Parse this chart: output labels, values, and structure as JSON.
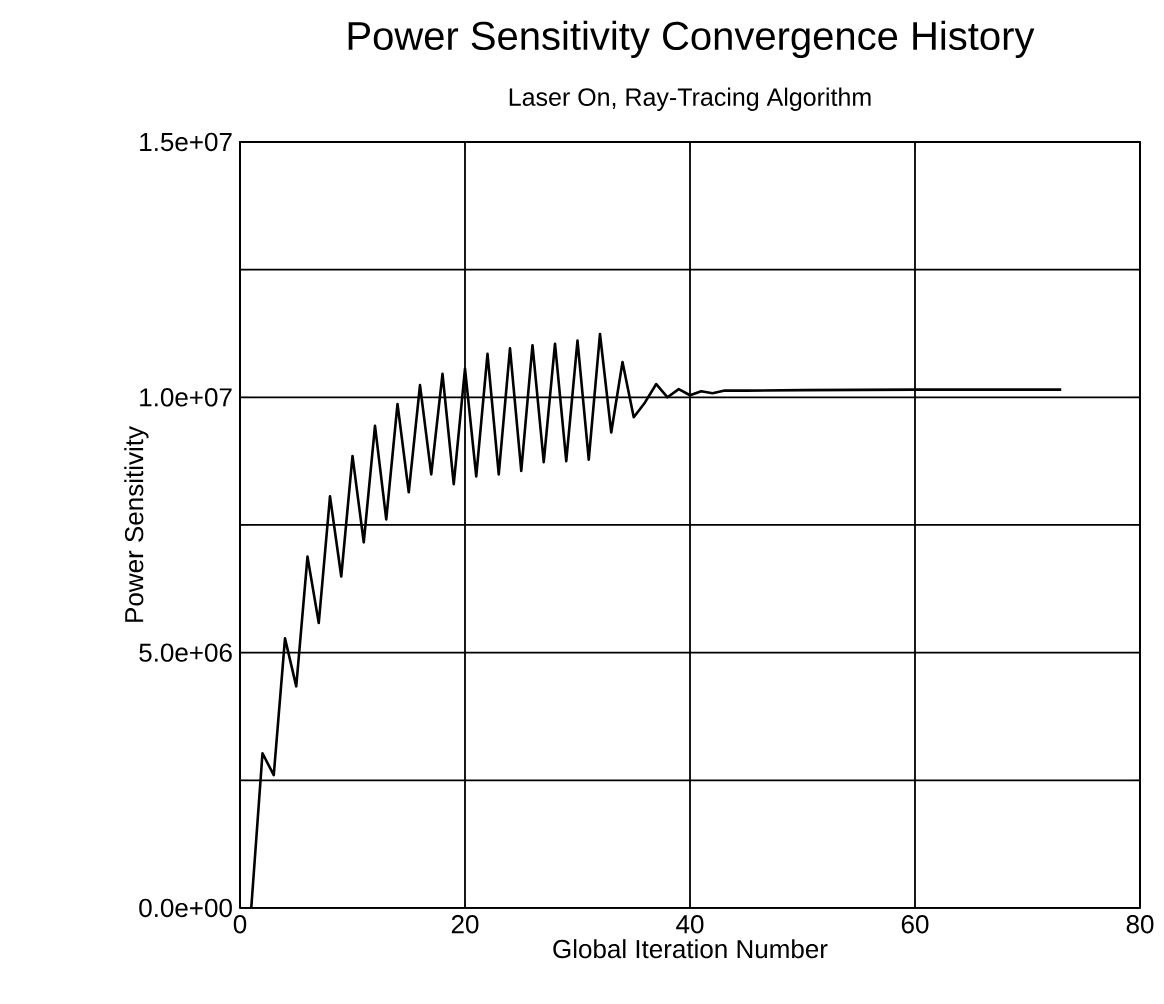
{
  "chart_data": {
    "type": "line",
    "title": "Power Sensitivity Convergence History",
    "subtitle": "Laser On, Ray-Tracing Algorithm",
    "xlabel": "Global Iteration Number",
    "ylabel": "Power Sensitivity",
    "x": [
      1,
      2,
      3,
      4,
      5,
      6,
      7,
      8,
      9,
      10,
      11,
      12,
      13,
      14,
      15,
      16,
      17,
      18,
      19,
      20,
      21,
      22,
      23,
      24,
      25,
      26,
      27,
      28,
      29,
      30,
      31,
      32,
      33,
      34,
      35,
      36,
      37,
      38,
      39,
      40,
      41,
      42,
      43,
      45,
      50,
      60,
      73
    ],
    "series": [
      {
        "color": "#000000",
        "values": [
          0,
          3030000,
          2600000,
          5280000,
          4340000,
          6880000,
          5580000,
          8060000,
          6490000,
          8850000,
          7160000,
          9440000,
          7610000,
          9870000,
          8140000,
          10240000,
          8490000,
          10460000,
          8300000,
          10560000,
          8450000,
          10850000,
          8490000,
          10960000,
          8560000,
          11020000,
          8730000,
          11050000,
          8750000,
          11110000,
          8780000,
          11240000,
          9310000,
          10690000,
          9610000,
          9900000,
          10260000,
          10000000,
          10160000,
          10040000,
          10120000,
          10080000,
          10130000,
          10130000,
          10140000,
          10150000,
          10150000
        ]
      }
    ],
    "xlim": [
      0,
      80
    ],
    "xticks": [
      0,
      20,
      40,
      60,
      80
    ],
    "ylim": [
      0,
      15000000
    ],
    "yticks": [
      {
        "value": 0,
        "label": "0.0e+00"
      },
      {
        "value": 2500000,
        "label": null
      },
      {
        "value": 5000000,
        "label": "5.0e+06"
      },
      {
        "value": 7500000,
        "label": null
      },
      {
        "value": 10000000,
        "label": "1.0e+07"
      },
      {
        "value": 12500000,
        "label": null
      },
      {
        "value": 15000000,
        "label": "1.5e+07"
      }
    ],
    "grid": true,
    "line_style": "solid",
    "marker": "none"
  }
}
